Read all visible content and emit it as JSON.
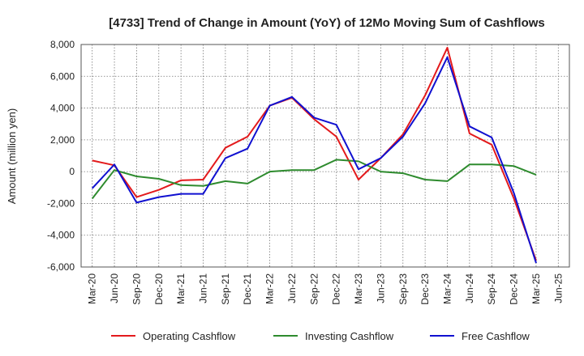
{
  "chart_data": {
    "type": "line",
    "title": "[4733]  Trend of Change in Amount (YoY) of 12Mo Moving Sum of Cashflows",
    "xlabel": "",
    "ylabel": "Amount (million yen)",
    "ylim": [
      -6000,
      8000
    ],
    "yticks": [
      8000,
      6000,
      4000,
      2000,
      0,
      -2000,
      -4000,
      -6000
    ],
    "ytick_labels": [
      "8,000",
      "6,000",
      "4,000",
      "2,000",
      "0",
      "-2,000",
      "-4,000",
      "-6,000"
    ],
    "grid": true,
    "legend_position": "bottom",
    "categories": [
      "Mar-20",
      "Jun-20",
      "Sep-20",
      "Dec-20",
      "Mar-21",
      "Jun-21",
      "Sep-21",
      "Dec-21",
      "Mar-22",
      "Jun-22",
      "Sep-22",
      "Dec-22",
      "Mar-23",
      "Jun-23",
      "Sep-23",
      "Dec-23",
      "Mar-24",
      "Jun-24",
      "Sep-24",
      "Dec-24",
      "Mar-25",
      "Jun-25"
    ],
    "series": [
      {
        "name": "Operating Cashflow",
        "color": "#e31a1c",
        "values": [
          700,
          400,
          -1600,
          -1150,
          -550,
          -500,
          1500,
          2200,
          4150,
          4650,
          3300,
          2200,
          -500,
          850,
          2350,
          4800,
          7800,
          2400,
          1700,
          -1700,
          -5600,
          null
        ]
      },
      {
        "name": "Investing Cashflow",
        "color": "#2e8b2e",
        "values": [
          -1700,
          100,
          -300,
          -450,
          -850,
          -900,
          -600,
          -750,
          0,
          100,
          100,
          750,
          650,
          0,
          -100,
          -500,
          -600,
          450,
          450,
          350,
          -200,
          null
        ]
      },
      {
        "name": "Free Cashflow",
        "color": "#1010d0",
        "values": [
          -1050,
          450,
          -1950,
          -1600,
          -1400,
          -1400,
          850,
          1450,
          4150,
          4700,
          3400,
          2950,
          150,
          850,
          2200,
          4300,
          7200,
          2850,
          2150,
          -1350,
          -5750,
          null
        ]
      }
    ]
  }
}
